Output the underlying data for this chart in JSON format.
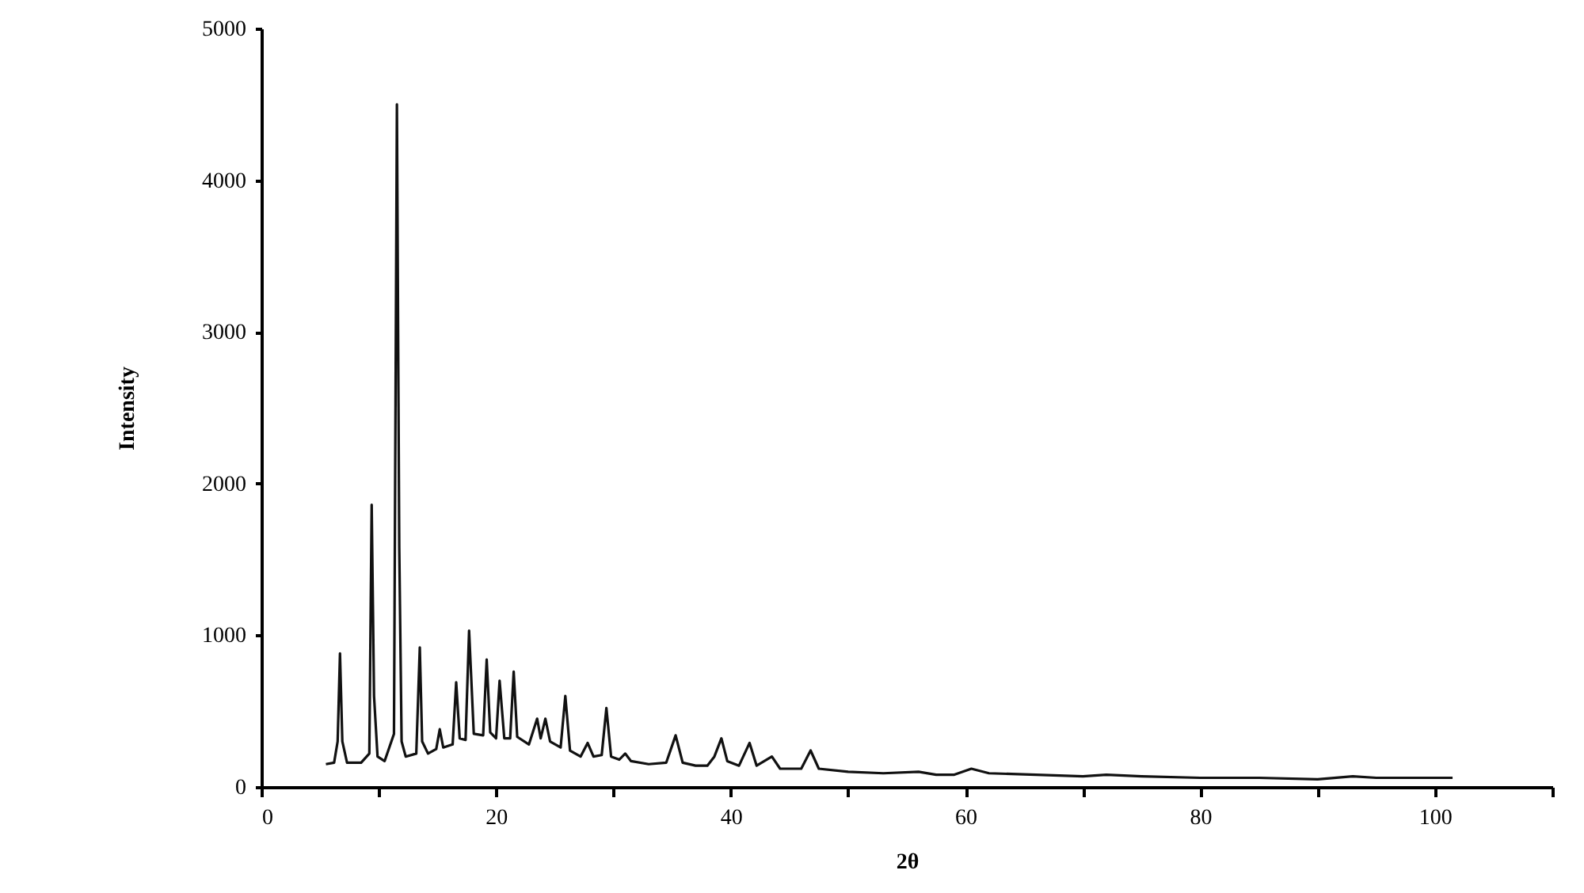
{
  "chart_data": {
    "type": "line",
    "xlabel": "2θ",
    "ylabel": "Intensity",
    "xlim": [
      0,
      110
    ],
    "ylim": [
      0,
      5000
    ],
    "xticks": [
      0,
      {
        "value": 10,
        "label": null
      },
      20,
      {
        "value": 30,
        "label": null
      },
      40,
      {
        "value": 50,
        "label": null
      },
      60,
      {
        "value": 70,
        "label": null
      },
      80,
      {
        "value": 90,
        "label": null
      },
      100,
      {
        "value": 110,
        "label": null
      }
    ],
    "yticks": [
      0,
      1000,
      2000,
      3000,
      4000,
      5000
    ],
    "grid": false,
    "series": [
      {
        "color": "#111111",
        "x": [
          5.5,
          6.2,
          6.5,
          6.7,
          6.9,
          7.3,
          8.5,
          9.2,
          9.4,
          9.6,
          9.9,
          10.5,
          11.3,
          11.55,
          11.75,
          11.95,
          12.3,
          13.2,
          13.5,
          13.7,
          14.2,
          14.9,
          15.2,
          15.5,
          16.3,
          16.6,
          16.9,
          17.4,
          17.7,
          18.1,
          18.9,
          19.2,
          19.5,
          20.0,
          20.3,
          20.7,
          21.2,
          21.5,
          21.8,
          22.8,
          23.5,
          23.8,
          24.2,
          24.6,
          25.5,
          25.9,
          26.3,
          27.2,
          27.8,
          28.3,
          29.0,
          29.4,
          29.8,
          30.5,
          31.0,
          31.5,
          33.0,
          34.5,
          35.3,
          35.9,
          37.0,
          38.0,
          38.6,
          39.2,
          39.7,
          40.7,
          41.6,
          42.2,
          43.5,
          44.2,
          46.0,
          46.8,
          47.5,
          50.0,
          53.0,
          56.0,
          57.5,
          59.0,
          60.5,
          62.0,
          66.0,
          70.0,
          72.0,
          75.0,
          80.0,
          85.0,
          90.0,
          93.0,
          95.0,
          101.5
        ],
        "values": [
          150,
          160,
          300,
          880,
          300,
          160,
          160,
          220,
          1860,
          600,
          200,
          170,
          350,
          4500,
          1580,
          300,
          200,
          220,
          920,
          300,
          220,
          250,
          380,
          260,
          280,
          690,
          320,
          310,
          1030,
          350,
          340,
          840,
          360,
          320,
          700,
          320,
          320,
          760,
          330,
          280,
          450,
          320,
          450,
          300,
          260,
          600,
          240,
          200,
          290,
          200,
          210,
          520,
          200,
          180,
          220,
          170,
          150,
          160,
          340,
          160,
          140,
          140,
          200,
          320,
          170,
          140,
          290,
          140,
          200,
          120,
          120,
          240,
          120,
          100,
          90,
          100,
          80,
          80,
          120,
          90,
          80,
          70,
          80,
          70,
          60,
          60,
          50,
          70,
          60,
          60
        ]
      }
    ]
  }
}
